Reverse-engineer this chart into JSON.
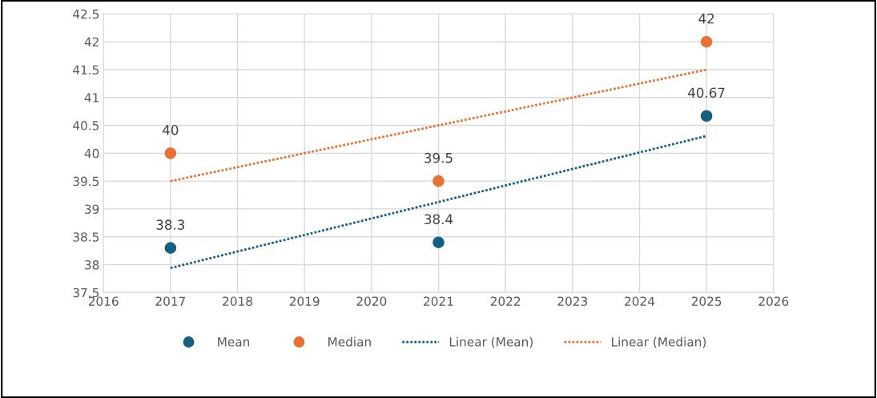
{
  "chart_data": {
    "type": "scatter",
    "series": [
      {
        "name": "Mean",
        "color": "#156082",
        "marker": "circle",
        "x": [
          2017,
          2021,
          2025
        ],
        "values": [
          38.3,
          38.4,
          40.67
        ],
        "value_labels": [
          "38.3",
          "38.4",
          "40.67"
        ]
      },
      {
        "name": "Median",
        "color": "#e97132",
        "marker": "circle",
        "x": [
          2017,
          2021,
          2025
        ],
        "values": [
          40,
          39.5,
          42
        ],
        "value_labels": [
          "40",
          "39.5",
          "42"
        ]
      },
      {
        "name": "Linear (Mean)",
        "type": "line",
        "color": "#156082",
        "line_style": "dotted",
        "x": [
          2017,
          2025
        ],
        "values": [
          37.94,
          40.31
        ]
      },
      {
        "name": "Linear (Median)",
        "type": "line",
        "color": "#e97132",
        "line_style": "dotted",
        "x": [
          2017,
          2025
        ],
        "values": [
          39.5,
          41.5
        ]
      }
    ],
    "xlim": [
      2016,
      2026
    ],
    "xticks": [
      2016,
      2017,
      2018,
      2019,
      2020,
      2021,
      2022,
      2023,
      2024,
      2025,
      2026
    ],
    "ylim": [
      37.5,
      42.5
    ],
    "yticks": [
      37.5,
      38,
      38.5,
      39,
      39.5,
      40,
      40.5,
      41,
      41.5,
      42,
      42.5
    ],
    "grid": true,
    "legend": "bottom"
  }
}
